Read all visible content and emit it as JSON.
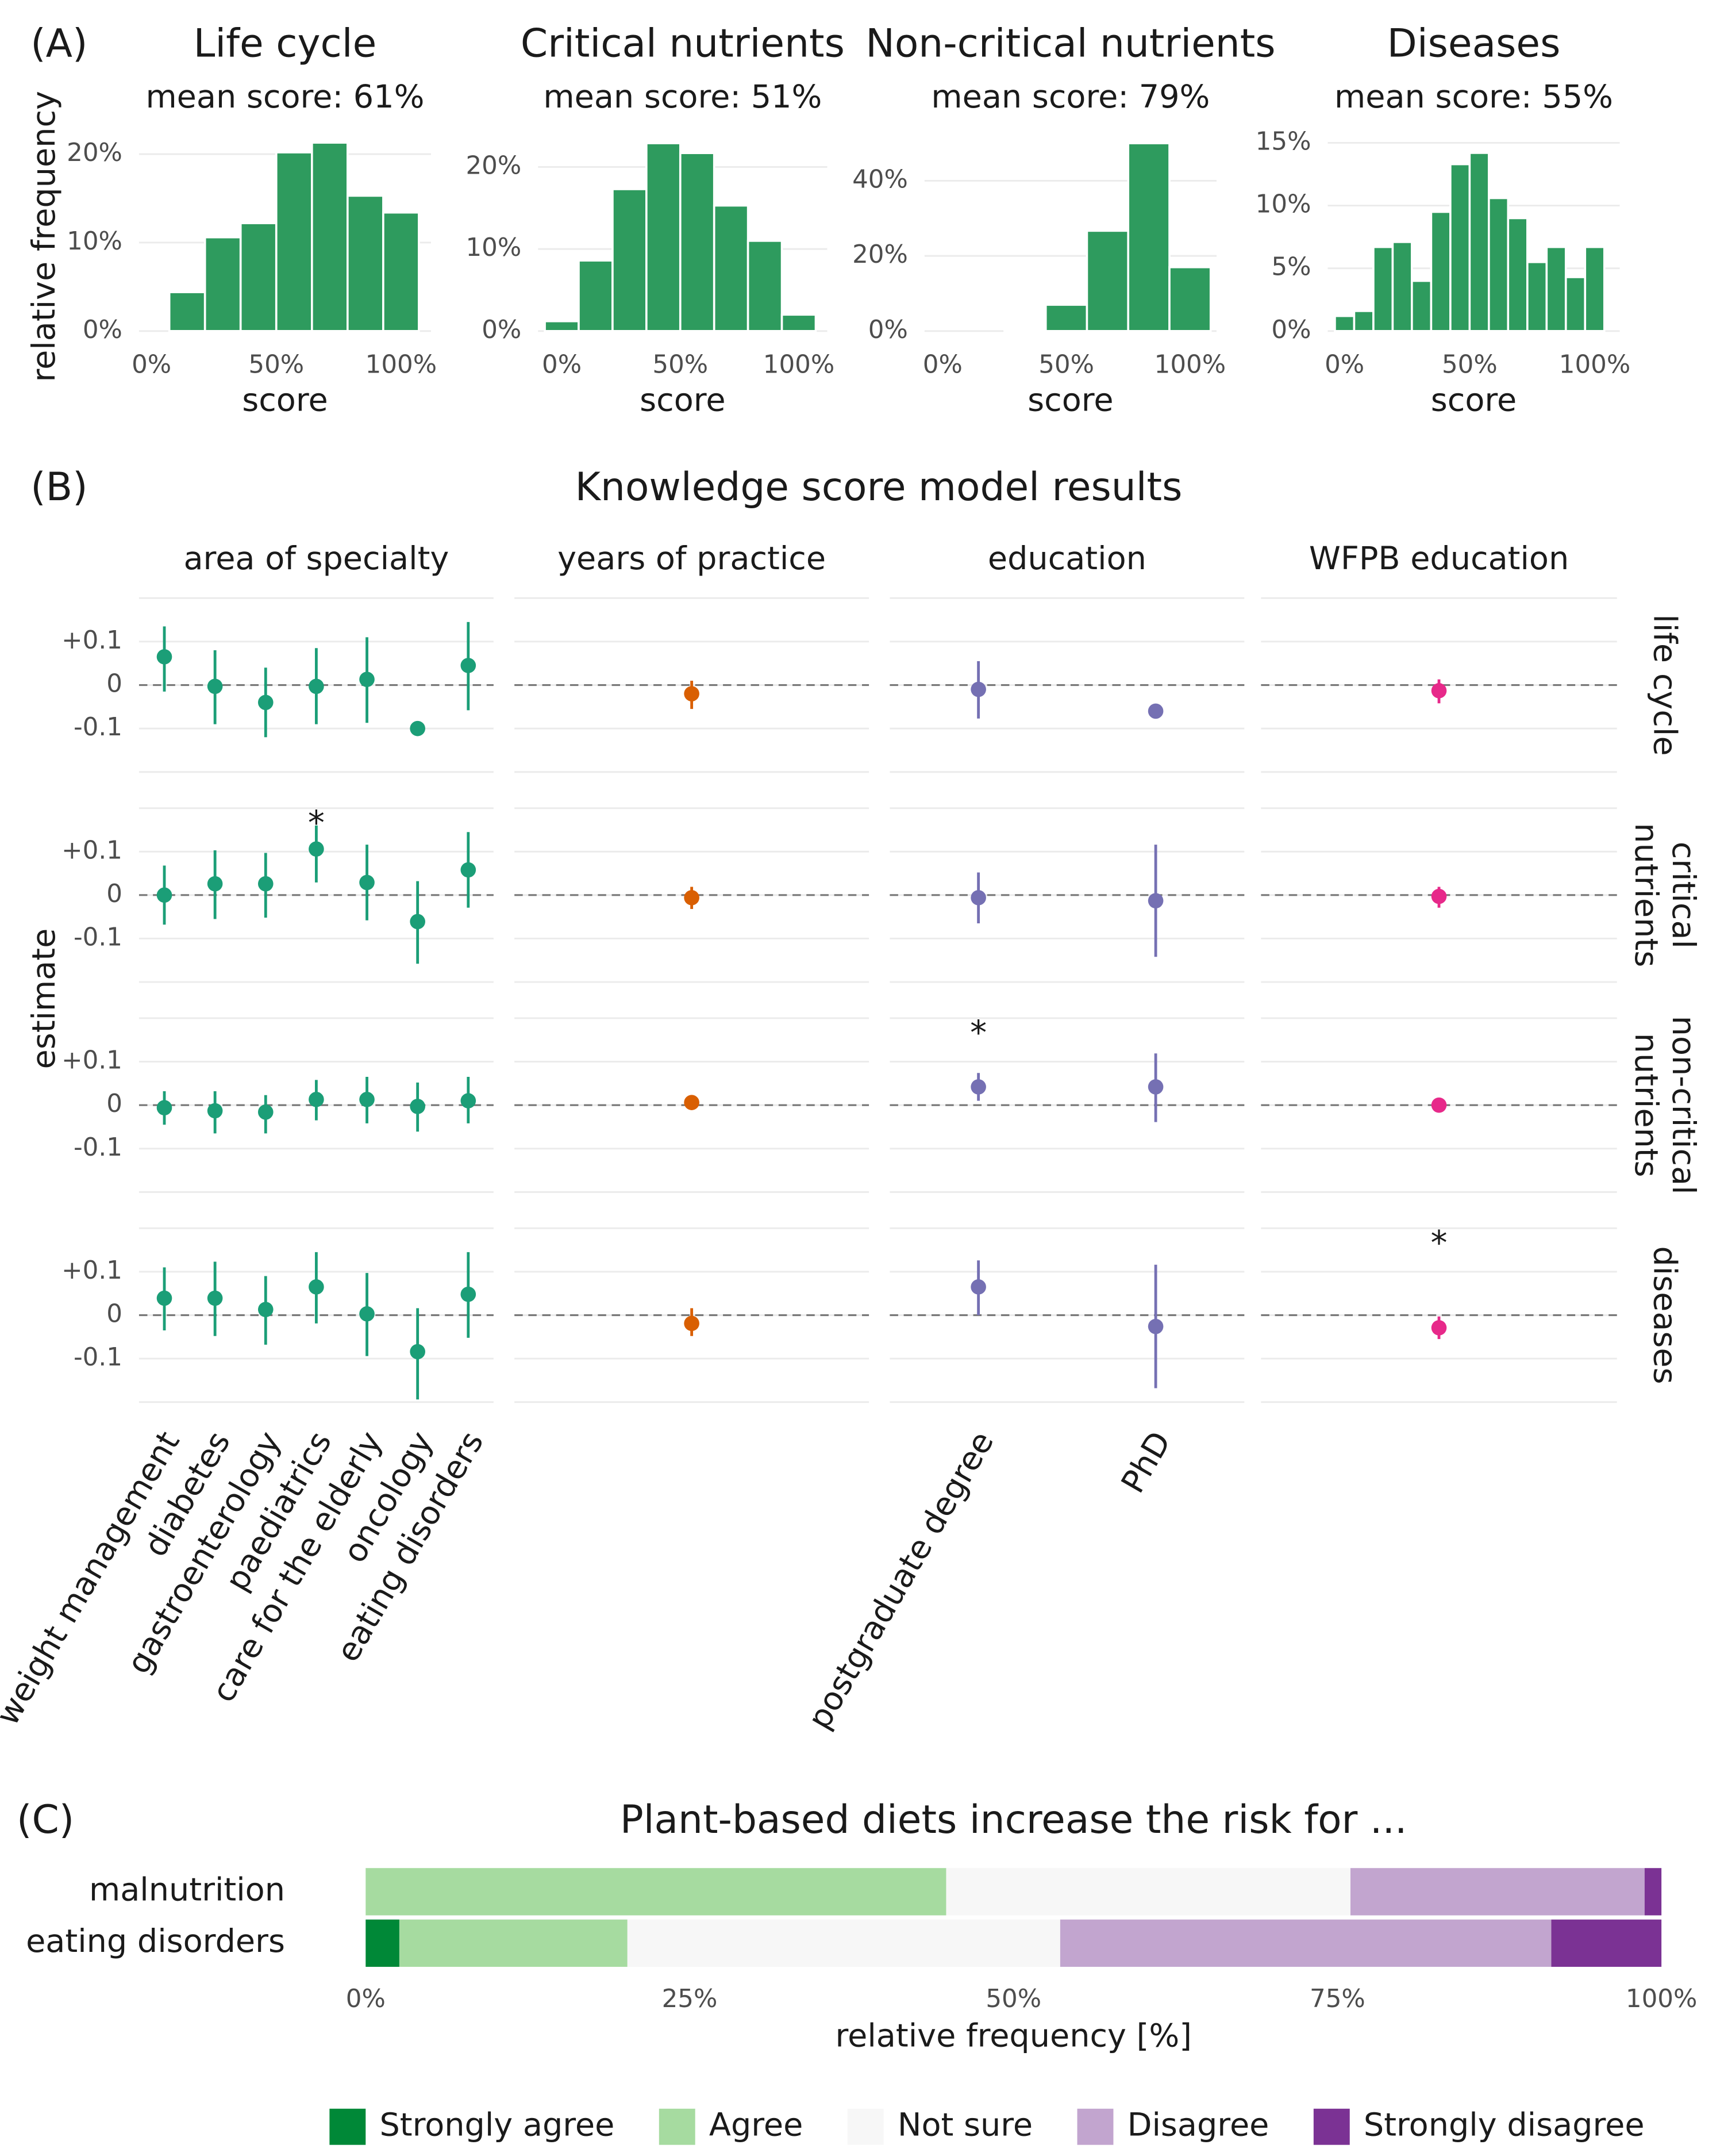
{
  "chart_data": [
    {
      "type": "histogram",
      "panel": "(A)",
      "title": "Life cycle",
      "subtitle": "mean score: 61%",
      "xlabel": "score",
      "ylabel": "relative frequency",
      "color": "#2e9b5e",
      "bins": [
        7.14,
        21.43,
        35.71,
        50,
        64.29,
        78.57,
        92.86,
        107.14
      ],
      "values": [
        4.4,
        10.6,
        12.2,
        20.2,
        21.3,
        15.3,
        13.4
      ],
      "xlim": [
        -5,
        112
      ],
      "xticks": [
        {
          "value": 0,
          "label": "0%"
        },
        {
          "value": 50,
          "label": "50%"
        },
        {
          "value": 100,
          "label": "100%"
        }
      ],
      "ylim": [
        0,
        21.7
      ],
      "yticks": [
        {
          "value": 0,
          "label": "0%"
        },
        {
          "value": 10,
          "label": "10%"
        },
        {
          "value": 20,
          "label": "20%"
        }
      ],
      "grid": true
    },
    {
      "type": "histogram",
      "title": "Critical nutrients",
      "subtitle": "mean score: 51%",
      "xlabel": "score",
      "color": "#2e9b5e",
      "bins": [
        -7.14,
        7.14,
        21.43,
        35.71,
        50,
        64.29,
        78.57,
        92.86,
        107.14
      ],
      "values": [
        1.2,
        8.6,
        17.3,
        22.9,
        21.7,
        15.3,
        11.0,
        2.0
      ],
      "xlim": [
        -10,
        112
      ],
      "xticks": [
        {
          "value": 0,
          "label": "0%"
        },
        {
          "value": 50,
          "label": "50%"
        },
        {
          "value": 100,
          "label": "100%"
        }
      ],
      "ylim": [
        0,
        23.4
      ],
      "yticks": [
        {
          "value": 0,
          "label": "0%"
        },
        {
          "value": 10,
          "label": "10%"
        },
        {
          "value": 20,
          "label": "20%"
        }
      ],
      "grid": true
    },
    {
      "type": "histogram",
      "title": "Non-critical nutrients",
      "subtitle": "mean score: 79%",
      "xlabel": "score",
      "color": "#2e9b5e",
      "bins": [
        -8.33,
        8.33,
        25,
        41.67,
        58.33,
        75,
        91.67,
        108.33
      ],
      "values": [
        0,
        0,
        0.5,
        7.0,
        26.7,
        50,
        17.0
      ],
      "xlim": [
        -7.3,
        110.7
      ],
      "xticks": [
        {
          "value": 0,
          "label": "0%"
        },
        {
          "value": 50,
          "label": "50%"
        },
        {
          "value": 100,
          "label": "100%"
        }
      ],
      "ylim": [
        0,
        51.1
      ],
      "yticks": [
        {
          "value": 0,
          "label": "0%"
        },
        {
          "value": 20,
          "label": "20%"
        },
        {
          "value": 40,
          "label": "40%"
        }
      ],
      "grid": true
    },
    {
      "type": "histogram",
      "title": "Diseases",
      "subtitle": "mean score: 55%",
      "xlabel": "score",
      "color": "#2e9b5e",
      "bins": [
        -3.85,
        3.85,
        11.54,
        19.23,
        26.92,
        34.62,
        42.31,
        50,
        57.69,
        65.38,
        73.08,
        80.77,
        88.46,
        96.15,
        103.85
      ],
      "values": [
        1.2,
        1.6,
        6.7,
        7.1,
        4.0,
        9.5,
        13.3,
        14.2,
        10.6,
        9.0,
        5.5,
        6.7,
        4.3,
        6.7
      ],
      "xlim": [
        -6.7,
        110
      ],
      "xticks": [
        {
          "value": 0,
          "label": "0%"
        },
        {
          "value": 50,
          "label": "50%"
        },
        {
          "value": 100,
          "label": "100%"
        }
      ],
      "ylim": [
        0,
        15.3
      ],
      "yticks": [
        {
          "value": 0,
          "label": "0%"
        },
        {
          "value": 5,
          "label": "5%"
        },
        {
          "value": 10,
          "label": "10%"
        },
        {
          "value": 15,
          "label": "15%"
        }
      ],
      "grid": true
    },
    {
      "type": "forest",
      "panel": "(B)",
      "title": "Knowledge score model results",
      "ylabel": "estimate",
      "ylim": [
        -0.2,
        0.2
      ],
      "yticks": [
        {
          "value": 0.1,
          "label": "+0.1"
        },
        0,
        {
          "value": -0.1,
          "label": "-0.1"
        }
      ],
      "hline": 0,
      "grid": true,
      "rows": [
        [
          "life cycle"
        ],
        [
          "critical",
          "nutrients"
        ],
        [
          "non-critical",
          "nutrients"
        ],
        [
          "diseases"
        ]
      ],
      "columns": [
        {
          "name": "area of specialty",
          "color": "#1b9e77",
          "categories": [
            "weight management",
            "diabetes",
            "gastroenterology",
            "paediatrics",
            "care for the elderly",
            "oncology",
            "eating disorders"
          ],
          "estimates": [
            [
              0.065,
              -0.003,
              -0.04,
              -0.003,
              0.013,
              -0.1,
              0.045
            ],
            [
              0,
              0.026,
              0.026,
              0.106,
              0.029,
              -0.061,
              0.058
            ],
            [
              -0.006,
              -0.013,
              -0.016,
              0.013,
              0.013,
              -0.003,
              0.01
            ],
            [
              0.039,
              0.039,
              0.013,
              0.065,
              0.003,
              -0.084,
              0.048
            ]
          ],
          "lower": [
            [
              -0.015,
              -0.09,
              -0.12,
              -0.09,
              -0.087,
              -0.102,
              -0.058
            ],
            [
              -0.068,
              -0.055,
              -0.052,
              0.029,
              -0.058,
              -0.158,
              -0.029
            ],
            [
              -0.045,
              -0.065,
              -0.065,
              -0.035,
              -0.042,
              -0.061,
              -0.042
            ],
            [
              -0.035,
              -0.048,
              -0.068,
              -0.019,
              -0.094,
              -0.194,
              -0.052
            ]
          ],
          "upper": [
            [
              0.135,
              0.08,
              0.04,
              0.085,
              0.11,
              -0.098,
              0.145
            ],
            [
              0.068,
              0.103,
              0.097,
              0.16,
              0.116,
              0.032,
              0.145
            ],
            [
              0.032,
              0.032,
              0.023,
              0.058,
              0.065,
              0.052,
              0.065
            ],
            [
              0.11,
              0.123,
              0.09,
              0.145,
              0.097,
              0.016,
              0.145
            ]
          ],
          "markers": [
            [
              null,
              null,
              null,
              null,
              null,
              null,
              null
            ],
            [
              null,
              null,
              null,
              "*",
              null,
              null,
              null
            ],
            [
              null,
              null,
              null,
              null,
              null,
              null,
              null
            ],
            [
              null,
              null,
              null,
              null,
              null,
              null,
              null
            ]
          ]
        },
        {
          "name": "years of practice",
          "color": "#d95f02",
          "categories": [
            null
          ],
          "estimates": [
            [
              -0.02
            ],
            [
              -0.006
            ],
            [
              0.006
            ],
            [
              -0.019
            ]
          ],
          "lower": [
            [
              -0.055
            ],
            [
              -0.032
            ],
            [
              0.003
            ],
            [
              -0.048
            ]
          ],
          "upper": [
            [
              0.01
            ],
            [
              0.019
            ],
            [
              0.009
            ],
            [
              0.016
            ]
          ],
          "markers": [
            [
              null
            ],
            [
              null
            ],
            [
              null
            ],
            [
              null
            ]
          ]
        },
        {
          "name": "education",
          "color": "#7570b3",
          "categories": [
            "postgraduate degree",
            "PhD"
          ],
          "estimates": [
            [
              -0.01,
              -0.06
            ],
            [
              -0.006,
              -0.013
            ],
            [
              0.042,
              0.042
            ],
            [
              0.065,
              -0.026
            ]
          ],
          "lower": [
            [
              -0.077,
              -0.062
            ],
            [
              -0.065,
              -0.142
            ],
            [
              0.01,
              -0.039
            ],
            [
              0,
              -0.168
            ]
          ],
          "upper": [
            [
              0.055,
              -0.058
            ],
            [
              0.052,
              0.116
            ],
            [
              0.074,
              0.119
            ],
            [
              0.126,
              0.116
            ]
          ],
          "markers": [
            [
              null,
              null
            ],
            [
              null,
              null
            ],
            [
              "*",
              null
            ],
            [
              null,
              null
            ]
          ]
        },
        {
          "name": "WFPB education",
          "color": "#e7298a",
          "categories": [
            null
          ],
          "estimates": [
            [
              -0.013
            ],
            [
              -0.003
            ],
            [
              0
            ],
            [
              -0.029
            ]
          ],
          "lower": [
            [
              -0.042
            ],
            [
              -0.029
            ],
            [
              -0.003
            ],
            [
              -0.055
            ]
          ],
          "upper": [
            [
              0.013
            ],
            [
              0.019
            ],
            [
              0.003
            ],
            [
              -0.003
            ]
          ],
          "markers": [
            [
              null
            ],
            [
              null
            ],
            [
              null
            ],
            [
              "*"
            ]
          ]
        }
      ]
    },
    {
      "type": "stacked_bar",
      "panel": "(C)",
      "title": "Plant-based diets increase the risk for ...",
      "xlabel": "relative frequency [%]",
      "categories": [
        "malnutrition",
        "eating disorders"
      ],
      "series": [
        {
          "name": "Strongly agree",
          "color": "#008837",
          "values": [
            0,
            2.6
          ]
        },
        {
          "name": "Agree",
          "color": "#a6dba0",
          "values": [
            44.8,
            17.6
          ]
        },
        {
          "name": "Not sure",
          "color": "#f7f7f7",
          "values": [
            31.2,
            33.4
          ]
        },
        {
          "name": "Disagree",
          "color": "#c2a5cf",
          "values": [
            22.7,
            37.9
          ]
        },
        {
          "name": "Strongly disagree",
          "color": "#7b3294",
          "values": [
            1.3,
            8.5
          ]
        }
      ],
      "xlim": [
        0,
        100
      ],
      "xticks": [
        {
          "value": 0,
          "label": "0%"
        },
        {
          "value": 25,
          "label": "25%"
        },
        {
          "value": 50,
          "label": "50%"
        },
        {
          "value": 75,
          "label": "75%"
        },
        {
          "value": 100,
          "label": "100%"
        }
      ],
      "legend": "bottom"
    }
  ]
}
